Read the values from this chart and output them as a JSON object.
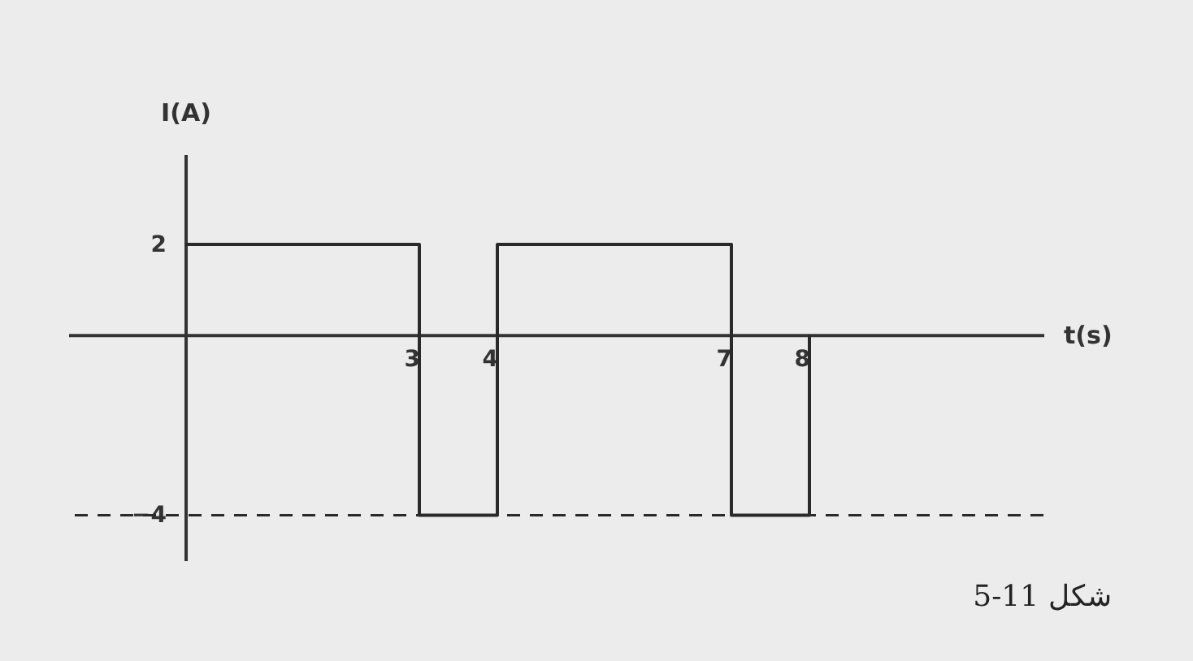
{
  "chart_data": {
    "type": "step",
    "xlabel": "t(s)",
    "ylabel": "I(A)",
    "x": [
      0,
      3,
      4,
      7,
      8
    ],
    "values": [
      2,
      -4,
      2,
      -4,
      0
    ],
    "color": "#2a2a2a",
    "xlim": [
      -1.5,
      11
    ],
    "xticks": [
      3,
      4,
      7,
      8
    ],
    "ylim": [
      -5,
      4
    ],
    "yticks": [
      2,
      -4
    ],
    "grid": false,
    "line_style": "solid",
    "marker": "none",
    "ref_lines": [
      {
        "axis": "y",
        "value": -4,
        "line_style": "dashed",
        "color": "#2a2a2a"
      }
    ],
    "annotations": [
      "شكل 11-5"
    ]
  }
}
